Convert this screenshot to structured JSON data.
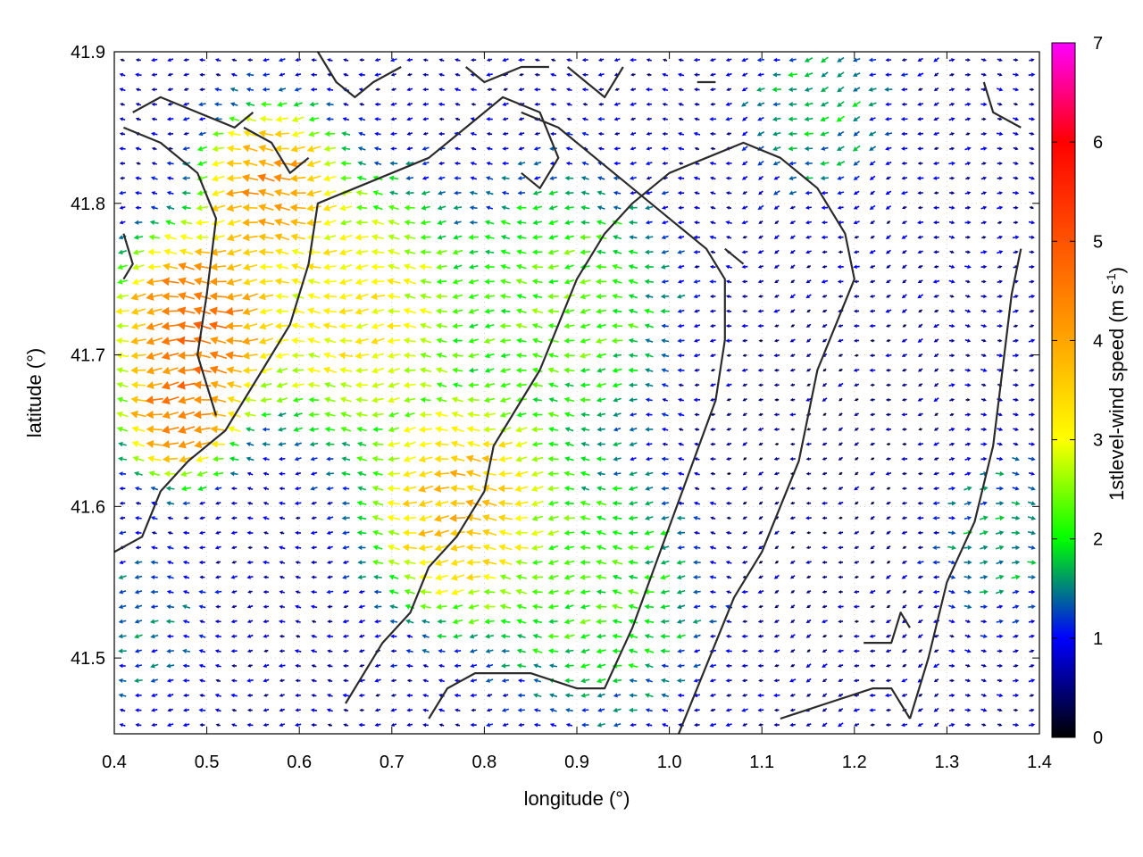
{
  "chart_data": {
    "type": "vector-field",
    "xlabel": "longitude (°)",
    "ylabel": "latitude (°)",
    "colorbar_label_main": "1stlevel-wind speed (m s",
    "colorbar_label_sup": "-1",
    "colorbar_label_close": ")",
    "xlim": [
      0.4,
      1.4
    ],
    "ylim": [
      41.45,
      41.9
    ],
    "x_ticks": [
      {
        "value": 0.4,
        "label": "0.4"
      },
      {
        "value": 0.5,
        "label": "0.5"
      },
      {
        "value": 0.6,
        "label": "0.6"
      },
      {
        "value": 0.7,
        "label": "0.7"
      },
      {
        "value": 0.8,
        "label": "0.8"
      },
      {
        "value": 0.9,
        "label": "0.9"
      },
      {
        "value": 1.0,
        "label": "1.0"
      },
      {
        "value": 1.1,
        "label": "1.1"
      },
      {
        "value": 1.2,
        "label": "1.2"
      },
      {
        "value": 1.3,
        "label": "1.3"
      },
      {
        "value": 1.4,
        "label": "1.4"
      }
    ],
    "y_ticks": [
      {
        "value": 41.5,
        "label": "41.5"
      },
      {
        "value": 41.6,
        "label": "41.6"
      },
      {
        "value": 41.7,
        "label": "41.7"
      },
      {
        "value": 41.8,
        "label": "41.8"
      },
      {
        "value": 41.9,
        "label": "41.9"
      }
    ],
    "colorbar": {
      "range": [
        0,
        7
      ],
      "ticks": [
        {
          "value": 0,
          "label": "0"
        },
        {
          "value": 1,
          "label": "1"
        },
        {
          "value": 2,
          "label": "2"
        },
        {
          "value": 3,
          "label": "3"
        },
        {
          "value": 4,
          "label": "4"
        },
        {
          "value": 5,
          "label": "5"
        },
        {
          "value": 6,
          "label": "6"
        },
        {
          "value": 7,
          "label": "7"
        }
      ],
      "stops": [
        {
          "value": 0,
          "color": "#000000"
        },
        {
          "value": 1,
          "color": "#0000ff"
        },
        {
          "value": 1.5,
          "color": "#008080"
        },
        {
          "value": 2,
          "color": "#00ff00"
        },
        {
          "value": 3,
          "color": "#ffff00"
        },
        {
          "value": 4,
          "color": "#ffa500"
        },
        {
          "value": 6,
          "color": "#ff0000"
        },
        {
          "value": 7,
          "color": "#ff00ff"
        }
      ]
    },
    "vectors": {
      "lon_step": 0.01725,
      "lat_step": 0.00975,
      "speed_field": [
        {
          "lon": 0.49,
          "lat": 41.72,
          "speed": 5.3,
          "radius": 0.06
        },
        {
          "lon": 0.47,
          "lat": 41.66,
          "speed": 5.0,
          "radius": 0.04
        },
        {
          "lon": 0.57,
          "lat": 41.81,
          "speed": 4.8,
          "radius": 0.05
        },
        {
          "lon": 0.78,
          "lat": 41.6,
          "speed": 4.3,
          "radius": 0.07
        },
        {
          "lon": 0.66,
          "lat": 41.73,
          "speed": 3.6,
          "radius": 0.08
        },
        {
          "lon": 0.88,
          "lat": 41.73,
          "speed": 2.6,
          "radius": 0.08
        },
        {
          "lon": 0.92,
          "lat": 41.55,
          "speed": 2.4,
          "radius": 0.08
        },
        {
          "lon": 0.42,
          "lat": 41.52,
          "speed": 1.5,
          "radius": 0.05
        },
        {
          "lon": 1.16,
          "lat": 41.86,
          "speed": 1.9,
          "radius": 0.05
        },
        {
          "lon": 1.16,
          "lat": 41.62,
          "speed": 0.4,
          "radius": 0.1
        },
        {
          "lon": 1.35,
          "lat": 41.58,
          "speed": 1.8,
          "radius": 0.05
        }
      ],
      "direction_field": [
        {
          "lon_min": 0.4,
          "lon_max": 1.07,
          "angle_deg": 180
        },
        {
          "lon_min": 1.07,
          "lon_max": 1.3,
          "angle_deg": 200
        },
        {
          "lon_min": 1.3,
          "lon_max": 1.4,
          "angle_deg": 0
        }
      ]
    },
    "contours": [
      [
        [
          0.4,
          41.57
        ],
        [
          0.43,
          41.58
        ],
        [
          0.45,
          41.61
        ],
        [
          0.48,
          41.63
        ],
        [
          0.52,
          41.65
        ],
        [
          0.56,
          41.69
        ],
        [
          0.59,
          41.72
        ],
        [
          0.61,
          41.76
        ],
        [
          0.62,
          41.8
        ],
        [
          0.66,
          41.81
        ],
        [
          0.7,
          41.82
        ],
        [
          0.74,
          41.83
        ],
        [
          0.78,
          41.85
        ],
        [
          0.82,
          41.87
        ],
        [
          0.86,
          41.86
        ],
        [
          0.88,
          41.83
        ],
        [
          0.86,
          41.81
        ],
        [
          0.84,
          41.82
        ]
      ],
      [
        [
          0.54,
          41.85
        ],
        [
          0.57,
          41.84
        ],
        [
          0.59,
          41.82
        ],
        [
          0.61,
          41.83
        ]
      ],
      [
        [
          0.42,
          41.86
        ],
        [
          0.45,
          41.87
        ],
        [
          0.49,
          41.86
        ],
        [
          0.53,
          41.85
        ],
        [
          0.55,
          41.86
        ]
      ],
      [
        [
          0.41,
          41.85
        ],
        [
          0.45,
          41.84
        ],
        [
          0.49,
          41.82
        ],
        [
          0.51,
          41.79
        ],
        [
          0.5,
          41.74
        ],
        [
          0.49,
          41.7
        ],
        [
          0.51,
          41.66
        ]
      ],
      [
        [
          0.41,
          41.78
        ],
        [
          0.42,
          41.76
        ],
        [
          0.41,
          41.75
        ]
      ],
      [
        [
          0.62,
          41.9
        ],
        [
          0.64,
          41.88
        ],
        [
          0.66,
          41.87
        ],
        [
          0.68,
          41.88
        ],
        [
          0.71,
          41.89
        ]
      ],
      [
        [
          0.78,
          41.89
        ],
        [
          0.8,
          41.88
        ],
        [
          0.84,
          41.89
        ],
        [
          0.87,
          41.89
        ]
      ],
      [
        [
          0.89,
          41.89
        ],
        [
          0.91,
          41.88
        ],
        [
          0.93,
          41.87
        ],
        [
          0.95,
          41.89
        ]
      ],
      [
        [
          1.03,
          41.88
        ],
        [
          1.05,
          41.88
        ]
      ],
      [
        [
          0.65,
          41.47
        ],
        [
          0.69,
          41.51
        ],
        [
          0.72,
          41.53
        ],
        [
          0.74,
          41.56
        ],
        [
          0.77,
          41.58
        ],
        [
          0.8,
          41.61
        ],
        [
          0.81,
          41.64
        ],
        [
          0.83,
          41.66
        ],
        [
          0.86,
          41.69
        ],
        [
          0.88,
          41.72
        ],
        [
          0.9,
          41.75
        ],
        [
          0.93,
          41.78
        ],
        [
          0.96,
          41.8
        ],
        [
          1.0,
          41.82
        ],
        [
          1.04,
          41.83
        ],
        [
          1.08,
          41.84
        ],
        [
          1.12,
          41.83
        ],
        [
          1.16,
          41.81
        ],
        [
          1.19,
          41.78
        ],
        [
          1.2,
          41.75
        ],
        [
          1.18,
          41.72
        ],
        [
          1.16,
          41.69
        ],
        [
          1.15,
          41.66
        ],
        [
          1.14,
          41.63
        ],
        [
          1.12,
          41.6
        ],
        [
          1.1,
          41.57
        ],
        [
          1.07,
          41.54
        ],
        [
          1.05,
          41.51
        ],
        [
          1.03,
          41.48
        ],
        [
          1.01,
          41.45
        ]
      ],
      [
        [
          0.74,
          41.46
        ],
        [
          0.76,
          41.48
        ],
        [
          0.79,
          41.49
        ],
        [
          0.85,
          41.49
        ],
        [
          0.9,
          41.48
        ],
        [
          0.93,
          41.48
        ],
        [
          0.96,
          41.52
        ],
        [
          0.99,
          41.57
        ],
        [
          1.02,
          41.62
        ],
        [
          1.05,
          41.67
        ],
        [
          1.06,
          41.71
        ],
        [
          1.06,
          41.75
        ],
        [
          1.04,
          41.77
        ],
        [
          1.0,
          41.79
        ],
        [
          0.96,
          41.81
        ],
        [
          0.92,
          41.83
        ],
        [
          0.88,
          41.85
        ],
        [
          0.84,
          41.86
        ]
      ],
      [
        [
          1.12,
          41.46
        ],
        [
          1.17,
          41.47
        ],
        [
          1.22,
          41.48
        ],
        [
          1.24,
          41.48
        ],
        [
          1.26,
          41.46
        ]
      ],
      [
        [
          1.21,
          41.51
        ],
        [
          1.24,
          41.51
        ],
        [
          1.25,
          41.53
        ],
        [
          1.26,
          41.52
        ]
      ],
      [
        [
          1.26,
          41.46
        ],
        [
          1.28,
          41.5
        ],
        [
          1.3,
          41.55
        ],
        [
          1.33,
          41.59
        ],
        [
          1.35,
          41.64
        ],
        [
          1.36,
          41.69
        ],
        [
          1.37,
          41.74
        ],
        [
          1.38,
          41.77
        ]
      ],
      [
        [
          1.34,
          41.88
        ],
        [
          1.35,
          41.86
        ],
        [
          1.38,
          41.85
        ]
      ],
      [
        [
          1.06,
          41.77
        ],
        [
          1.08,
          41.76
        ]
      ]
    ]
  }
}
